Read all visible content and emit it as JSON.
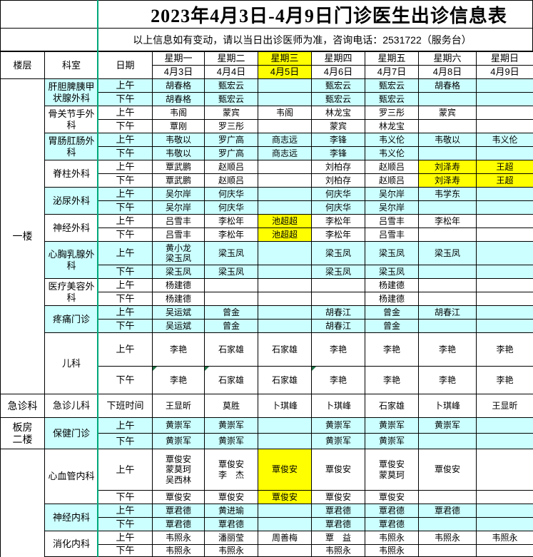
{
  "title": "2023年4月3日-4月9日门诊医生出诊信息表",
  "notice": "以上信息如有变动，请以当日出诊医师为准，咨询电话：2531722（服务台）",
  "header": {
    "floor_label": "楼层",
    "dept_label": "科室",
    "date_label": "日期",
    "days": [
      {
        "week": "星期一",
        "date": "4月3日",
        "hl": false
      },
      {
        "week": "星期二",
        "date": "4月4日",
        "hl": false
      },
      {
        "week": "星期三",
        "date": "4月5日",
        "hl": true
      },
      {
        "week": "星期四",
        "date": "4月6日",
        "hl": false
      },
      {
        "week": "星期五",
        "date": "4月7日",
        "hl": false
      },
      {
        "week": "星期六",
        "date": "4月8日",
        "hl": false
      },
      {
        "week": "星期日",
        "date": "4月9日",
        "hl": false
      }
    ]
  },
  "colors": {
    "cell_cyan": "#CCFFFF",
    "highlight_yellow": "#FFFF00",
    "freeze_line_green": "#00A878",
    "note_triangle_green": "#217346",
    "border_black": "#000000"
  },
  "floors": [
    {
      "label": "一楼",
      "from": 0,
      "to": 9,
      "partial": false
    },
    {
      "label": "急诊科",
      "from": 10,
      "to": 10,
      "partial": false
    },
    {
      "label": "板房\n二楼",
      "from": 11,
      "to": 11,
      "partial": false
    },
    {
      "label": "",
      "from": 12,
      "to": 14,
      "partial": true
    }
  ],
  "sections": [
    {
      "dept": "肝胆脾胰甲状腺外科",
      "bg": "cyan",
      "rows": [
        {
          "time": "上午",
          "cells": [
            "胡春格",
            "甄宏云",
            "",
            "甄宏云",
            "甄宏云",
            "胡春格",
            ""
          ]
        },
        {
          "time": "下午",
          "cells": [
            "胡春格",
            "甄宏云",
            "",
            "甄宏云",
            "甄宏云",
            "",
            ""
          ]
        }
      ]
    },
    {
      "dept": "骨关节手外科",
      "bg": "white",
      "rows": [
        {
          "time": "上午",
          "cells": [
            "韦阁",
            "蒙宾",
            "韦阁",
            "林龙宝",
            "罗三彤",
            "蒙宾",
            ""
          ]
        },
        {
          "time": "下午",
          "cells": [
            "覃刚",
            "罗三彤",
            "",
            "蒙宾",
            "林龙宝",
            "",
            ""
          ]
        }
      ]
    },
    {
      "dept": "胃肠肛肠外科",
      "bg": "cyan",
      "rows": [
        {
          "time": "上午",
          "cells": [
            "韦敬以",
            "罗广高",
            "商志远",
            "李锋",
            "韦义伦",
            "韦敬以",
            "韦义伦"
          ]
        },
        {
          "time": "下午",
          "cells": [
            "韦敬以",
            "罗广高",
            "商志远",
            "李锋",
            "韦义伦",
            "",
            ""
          ]
        }
      ]
    },
    {
      "dept": "脊柱外科",
      "bg": "white",
      "rows": [
        {
          "time": "上午",
          "cells": [
            "覃武鹏",
            "赵顺吕",
            "",
            "刘柏存",
            "赵顺吕",
            {
              "t": "刘泽寿",
              "hl": true
            },
            {
              "t": "王超",
              "hl": true
            }
          ]
        },
        {
          "time": "下午",
          "cells": [
            "覃武鹏",
            "赵顺吕",
            "",
            "刘柏存",
            "赵顺吕",
            {
              "t": "刘泽寿",
              "hl": true
            },
            {
              "t": "王超",
              "hl": true
            }
          ]
        }
      ]
    },
    {
      "dept": "泌尿外科",
      "bg": "cyan",
      "rows": [
        {
          "time": "上午",
          "cells": [
            "吴尔岸",
            "何庆华",
            "",
            "何庆华",
            "吴尔岸",
            "韦学东",
            ""
          ]
        },
        {
          "time": "下午",
          "cells": [
            "吴尔岸",
            "何庆华",
            "",
            "何庆华",
            "吴尔岸",
            "",
            ""
          ]
        }
      ]
    },
    {
      "dept": "神经外科",
      "bg": "white",
      "rows": [
        {
          "time": "上午",
          "cells": [
            "吕雪丰",
            "李松年",
            {
              "t": "池超超",
              "hl": true
            },
            "李松年",
            "吕雪丰",
            "李松年",
            ""
          ]
        },
        {
          "time": "下午",
          "cells": [
            "吕雪丰",
            "李松年",
            {
              "t": "池超超",
              "hl": true
            },
            "李松年",
            "吕雪丰",
            "",
            ""
          ]
        }
      ]
    },
    {
      "dept": "心胸乳腺外科",
      "bg": "cyan",
      "rows": [
        {
          "time": "上午",
          "cells": [
            "黄小龙\n梁玉凤",
            "梁玉凤",
            "",
            "梁玉凤",
            "梁玉凤",
            "梁玉凤",
            ""
          ]
        },
        {
          "time": "下午",
          "cells": [
            "梁玉凤",
            "梁玉凤",
            "",
            "梁玉凤",
            "梁玉凤",
            "",
            ""
          ]
        }
      ]
    },
    {
      "dept": "医疗美容外科",
      "bg": "white",
      "rows": [
        {
          "time": "上午",
          "cells": [
            "杨建德",
            "",
            "",
            "",
            "杨建德",
            "",
            ""
          ]
        },
        {
          "time": "下午",
          "cells": [
            "杨建德",
            "",
            "",
            "",
            "杨建德",
            "",
            ""
          ]
        }
      ]
    },
    {
      "dept": "疼痛门诊",
      "bg": "cyan",
      "rows": [
        {
          "time": "上午",
          "cells": [
            "吴运斌",
            "曾金",
            "",
            "胡春江",
            "曾金",
            "胡春江",
            ""
          ]
        },
        {
          "time": "下午",
          "cells": [
            "吴运斌",
            "曾金",
            "",
            "胡春江",
            "曾金",
            "",
            ""
          ]
        }
      ]
    },
    {
      "dept": "儿科",
      "bg": "white",
      "rows": [
        {
          "time": "上午",
          "cells": [
            "李艳",
            "石家雄",
            "石家雄",
            "李艳",
            "李艳",
            "李艳",
            "李艳"
          ]
        },
        {
          "time": "下午",
          "cells": [
            {
              "t": "李艳",
              "note": true
            },
            {
              "t": "石家雄",
              "note": true
            },
            "石家雄",
            {
              "t": "李艳",
              "note": true
            },
            "李艳",
            "李艳",
            "李艳"
          ]
        }
      ]
    },
    {
      "dept": "急诊儿科",
      "bg": "white",
      "rows": [
        {
          "time": "下班时间",
          "cells": [
            "王显昕",
            "莫胜",
            "卜琪峰",
            "卜琪峰",
            "石家雄",
            "卜琪峰",
            "王显昕"
          ]
        }
      ]
    },
    {
      "dept": "保健门诊",
      "bg": "cyan",
      "rows": [
        {
          "time": "上午",
          "cells": [
            "黄崇军",
            "黄崇军",
            "",
            "黄崇军",
            "黄崇军",
            "黄崇军",
            ""
          ]
        },
        {
          "time": "下午",
          "cells": [
            "黄崇军",
            "黄崇军",
            "",
            "黄崇军",
            "黄崇军",
            "",
            ""
          ]
        }
      ]
    },
    {
      "dept": "心血管内科",
      "bg": "white",
      "rows": [
        {
          "time": "上午",
          "cells": [
            "覃俊安\n蒙莫珂\n吴西林",
            "覃俊安\n李　杰",
            {
              "t": "覃俊安",
              "hl": true
            },
            "覃俊安",
            "覃俊安\n蒙莫珂",
            "覃俊安",
            ""
          ]
        },
        {
          "time": "下午",
          "cells": [
            "覃俊安",
            "覃俊安",
            {
              "t": "覃俊安",
              "hl": true
            },
            "覃俊安",
            "覃俊安",
            "",
            ""
          ]
        }
      ]
    },
    {
      "dept": "神经内科",
      "bg": "cyan",
      "rows": [
        {
          "time": "上午",
          "cells": [
            "覃君德",
            "黄进瑜",
            "",
            "覃君德",
            "覃君德",
            "覃君德",
            ""
          ]
        },
        {
          "time": "下午",
          "cells": [
            "覃君德",
            "覃君德",
            "",
            "覃君德",
            "覃君德",
            "",
            ""
          ]
        }
      ]
    },
    {
      "dept": "消化内科",
      "bg": "white",
      "rows": [
        {
          "time": "上午",
          "cells": [
            "韦照永",
            "潘丽莹",
            "周善梅",
            "覃　益",
            "韦照永",
            "韦照永",
            "韦照永"
          ]
        },
        {
          "time": "下午",
          "cells": [
            "韦照永",
            "韦照永",
            "",
            "韦照永",
            "韦照永",
            "",
            ""
          ]
        }
      ]
    }
  ]
}
